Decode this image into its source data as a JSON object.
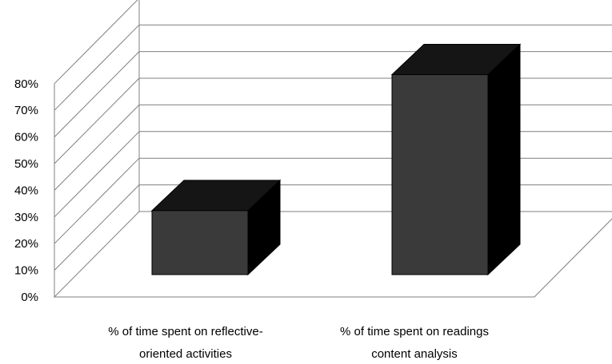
{
  "chart_data": {
    "type": "bar",
    "categories": [
      [
        "% of time spent on reflective-",
        "oriented activities"
      ],
      [
        "% of time spent on readings",
        "content analysis"
      ]
    ],
    "values": [
      0.24,
      0.75
    ],
    "ylim": [
      0,
      0.8
    ],
    "yticks": [
      0,
      0.1,
      0.2,
      0.3,
      0.4,
      0.5,
      0.6,
      0.7,
      0.8
    ],
    "ytick_labels": [
      "0%",
      "10%",
      "20%",
      "30%",
      "40%",
      "50%",
      "60%",
      "70%",
      "80%"
    ],
    "grid": true,
    "style": "3d-column",
    "colors": {
      "bar_front": "#3a3a3a",
      "bar_top": "#151515",
      "bar_side": "#000000",
      "grid": "#7f7f7f"
    }
  }
}
